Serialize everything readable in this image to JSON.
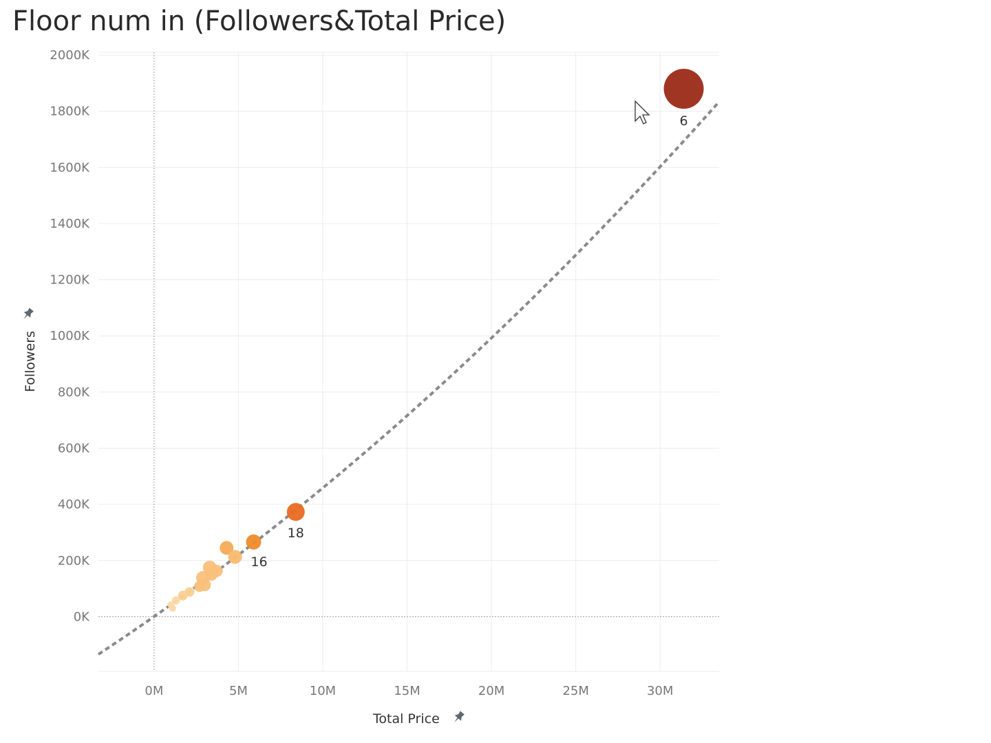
{
  "chart_data": {
    "type": "scatter",
    "title": "Floor num in (Followers&Total Price)",
    "xlabel": "Total Price",
    "ylabel": "Followers",
    "xlim": [
      -3.3,
      33.5
    ],
    "ylim": [
      -195,
      2010
    ],
    "x_ticks": [
      0,
      5,
      10,
      15,
      20,
      25,
      30
    ],
    "x_tick_labels": [
      "0M",
      "5M",
      "10M",
      "15M",
      "20M",
      "25M",
      "30M"
    ],
    "y_ticks": [
      0,
      200,
      400,
      600,
      800,
      1000,
      1200,
      1400,
      1600,
      1800,
      2000
    ],
    "y_tick_labels": [
      "0K",
      "200K",
      "400K",
      "600K",
      "800K",
      "1000K",
      "1200K",
      "1400K",
      "1600K",
      "1800K",
      "2000K"
    ],
    "x_unit": "M",
    "y_unit": "K",
    "grid": true,
    "trend_line": {
      "style": "dashed",
      "color": "#8a8a8a",
      "a": 0.5,
      "b": 42.0,
      "c": 0.38
    },
    "points": [
      {
        "x": 31.4,
        "y": 1880,
        "size": 29,
        "color": "#9c2a17",
        "label": "6"
      },
      {
        "x": 8.4,
        "y": 373,
        "size": 13,
        "color": "#ea6a22",
        "label": "18"
      },
      {
        "x": 5.9,
        "y": 266,
        "size": 11,
        "color": "#ef8a2c",
        "label": "16"
      },
      {
        "x": 4.3,
        "y": 245,
        "size": 10,
        "color": "#f6ab55",
        "label": ""
      },
      {
        "x": 4.8,
        "y": 213,
        "size": 10,
        "color": "#f8ba6e",
        "label": ""
      },
      {
        "x": 3.3,
        "y": 175,
        "size": 10,
        "color": "#f9c07a",
        "label": ""
      },
      {
        "x": 3.7,
        "y": 163,
        "size": 9,
        "color": "#f9c07a",
        "label": ""
      },
      {
        "x": 3.4,
        "y": 150,
        "size": 9,
        "color": "#f9c07a",
        "label": ""
      },
      {
        "x": 2.9,
        "y": 138,
        "size": 10,
        "color": "#f9c07a",
        "label": ""
      },
      {
        "x": 3.0,
        "y": 113,
        "size": 9,
        "color": "#f9c07a",
        "label": ""
      },
      {
        "x": 2.7,
        "y": 108,
        "size": 8,
        "color": "#f9c07a",
        "label": ""
      },
      {
        "x": 2.1,
        "y": 88,
        "size": 7,
        "color": "#fad094",
        "label": ""
      },
      {
        "x": 1.7,
        "y": 75,
        "size": 7,
        "color": "#fad094",
        "label": ""
      },
      {
        "x": 1.3,
        "y": 58,
        "size": 6,
        "color": "#fbd9a6",
        "label": ""
      },
      {
        "x": 1.0,
        "y": 42,
        "size": 5,
        "color": "#fbd9a6",
        "label": ""
      },
      {
        "x": 1.1,
        "y": 30,
        "size": 5,
        "color": "#fbd9a6",
        "label": ""
      }
    ],
    "colors": {
      "grid": "#ececec",
      "zero_line": "#9a9a9a",
      "pin": "#5f6770"
    }
  },
  "icons": {
    "y_axis_pin": "pin-icon",
    "x_axis_pin": "pin-icon",
    "cursor": "mouse-pointer-icon"
  }
}
